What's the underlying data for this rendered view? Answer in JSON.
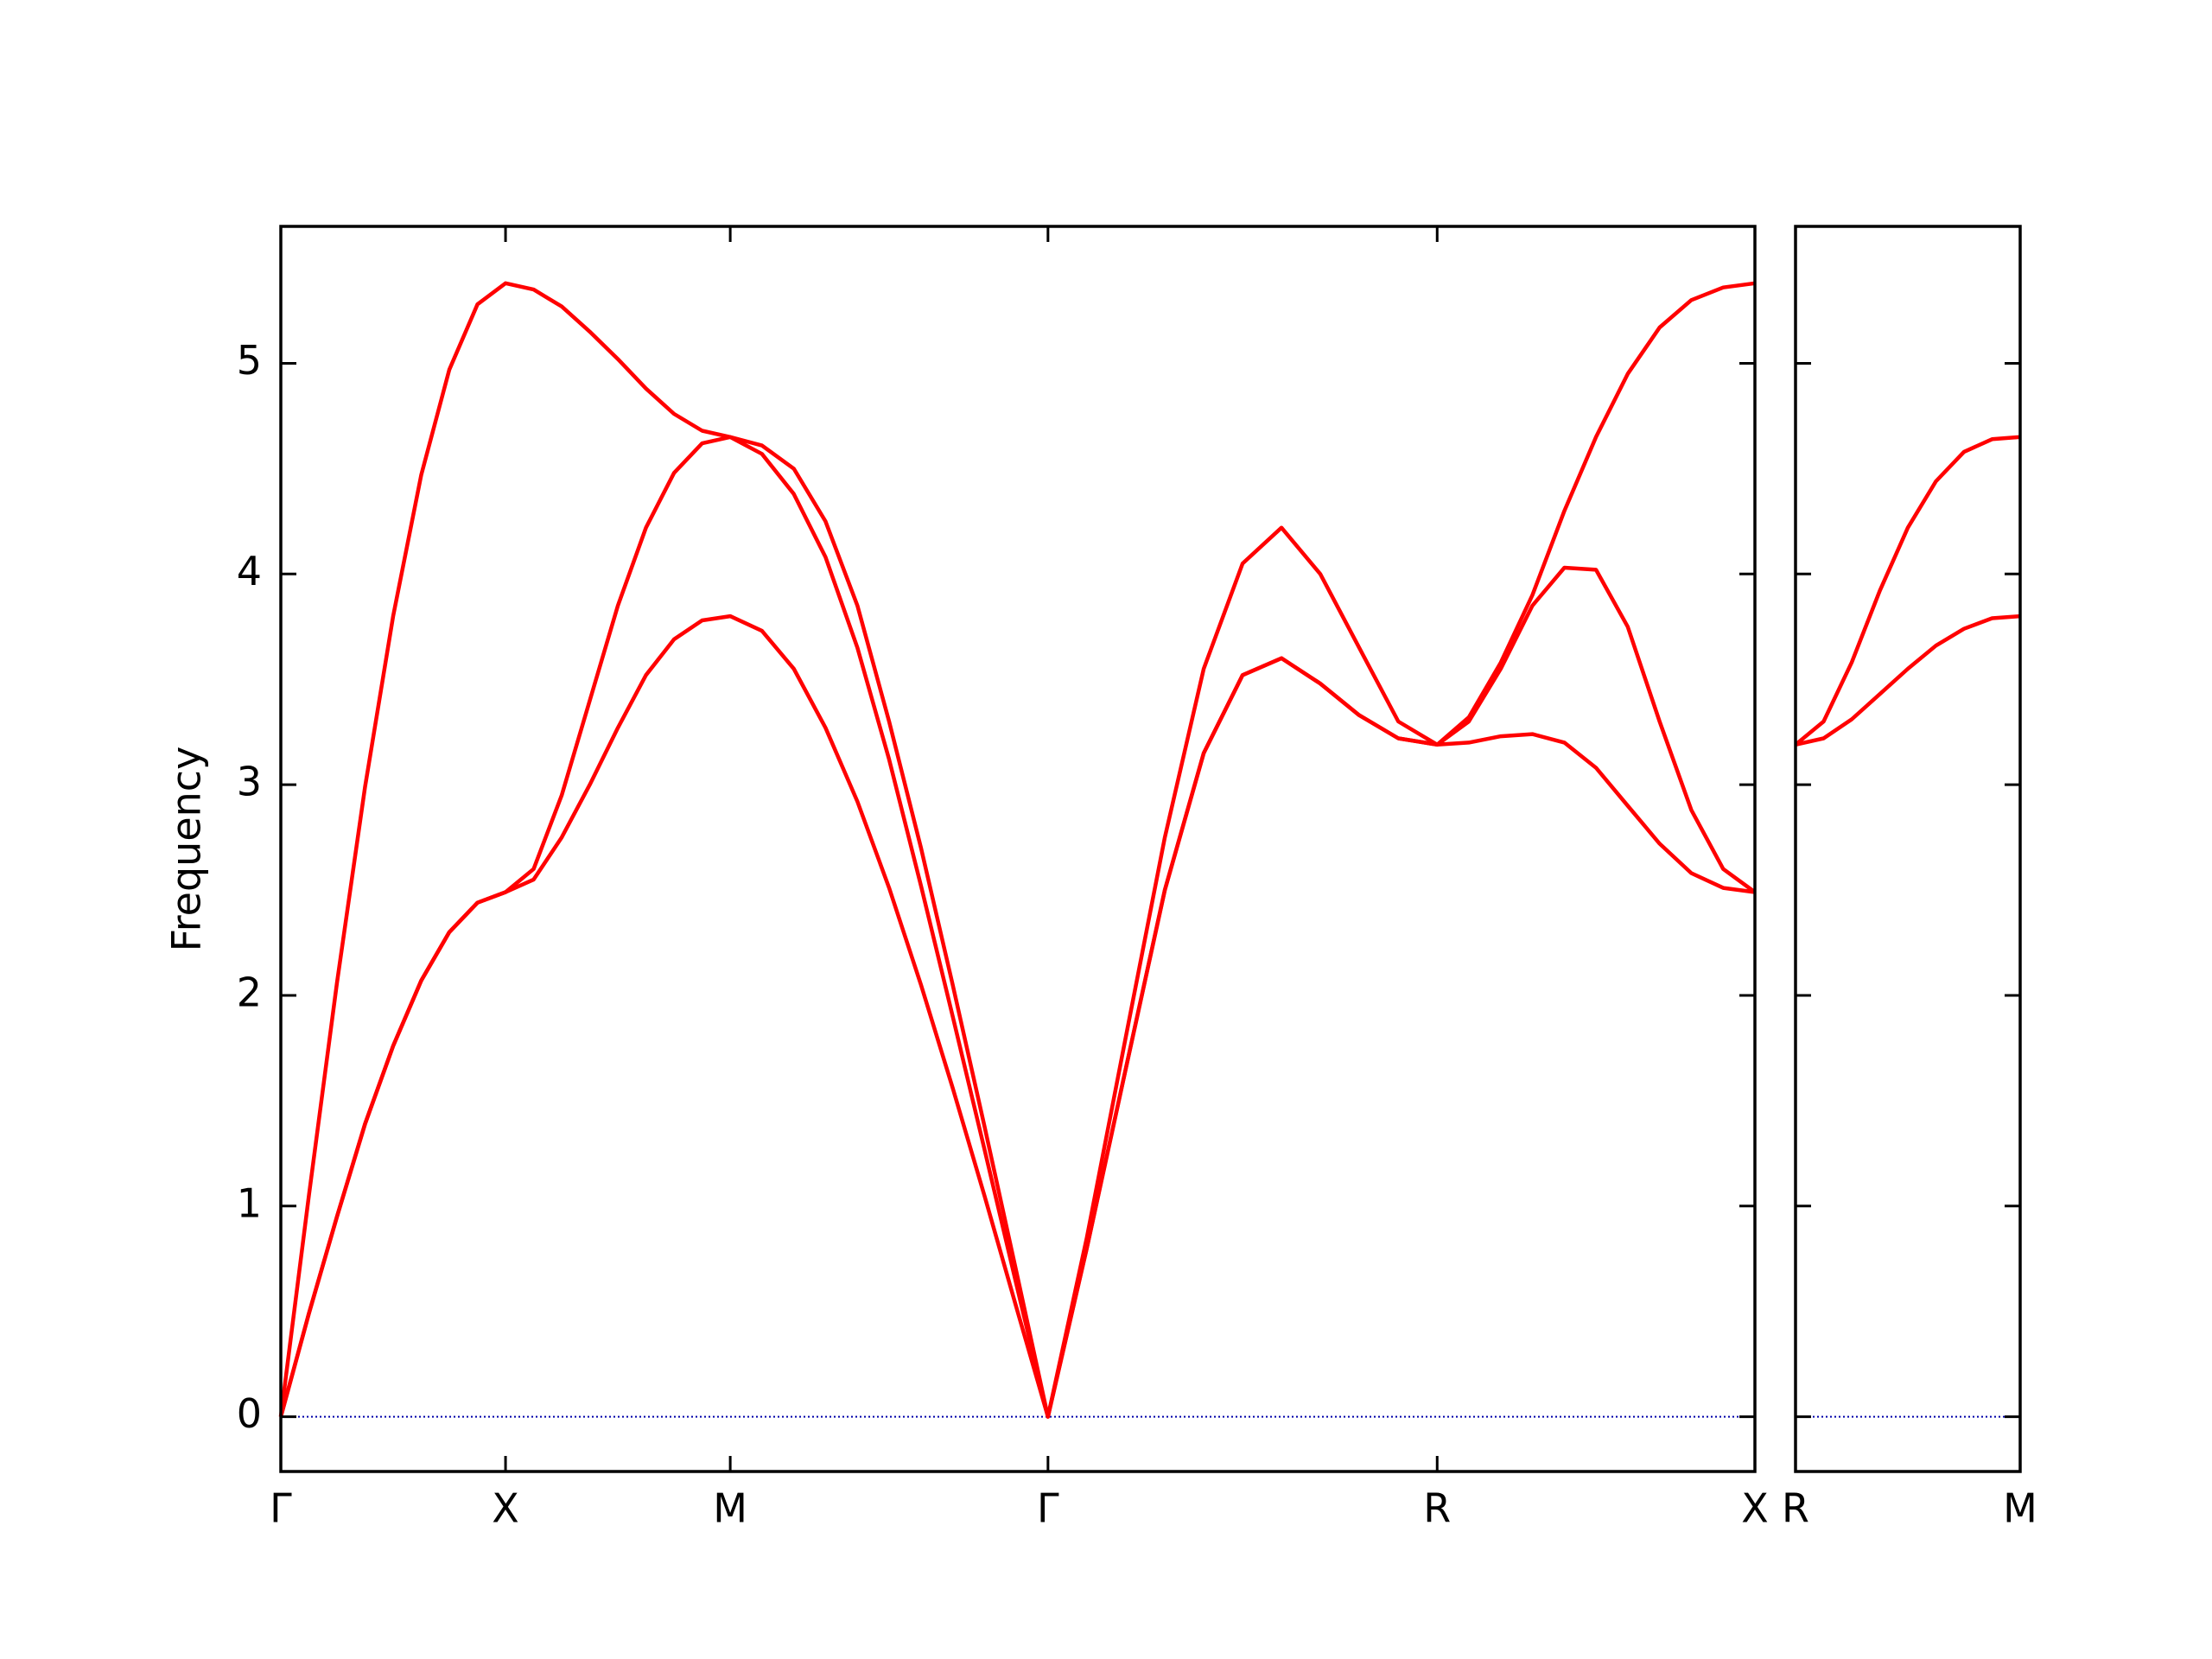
{
  "chart_data": [
    {
      "type": "line",
      "ylabel": "Frequency",
      "x": [
        0,
        0.125,
        0.25,
        0.375,
        0.5,
        0.625,
        0.75,
        0.875,
        1,
        1.125,
        1.25,
        1.375,
        1.5,
        1.625,
        1.75,
        1.875,
        2,
        2.141,
        2.283,
        2.424,
        2.566,
        2.707,
        2.849,
        2.99,
        3.131,
        3.273,
        3.414,
        3.587,
        3.76,
        3.934,
        4.107,
        4.28,
        4.453,
        4.626,
        4.799,
        4.973,
        5.146,
        5.287,
        5.429,
        5.57,
        5.712,
        5.853,
        5.994,
        6.136,
        6.277,
        6.419,
        6.56
      ],
      "series": [
        {
          "color": "#ff0000",
          "values": [
            0,
            0.49,
            0.95,
            1.39,
            1.76,
            2.07,
            2.3,
            2.44,
            2.49,
            2.55,
            2.75,
            3,
            3.27,
            3.52,
            3.69,
            3.78,
            3.8,
            3.73,
            3.55,
            3.27,
            2.92,
            2.51,
            2.05,
            1.56,
            1.05,
            0.52,
            0,
            0.8,
            1.65,
            2.5,
            3.15,
            3.52,
            3.6,
            3.48,
            3.33,
            3.22,
            3.19,
            3.2,
            3.23,
            3.24,
            3.2,
            3.08,
            2.9,
            2.72,
            2.58,
            2.51,
            2.49
          ]
        },
        {
          "color": "#ff0000",
          "values": [
            0,
            0.49,
            0.95,
            1.39,
            1.76,
            2.07,
            2.3,
            2.44,
            2.49,
            2.6,
            2.95,
            3.4,
            3.85,
            4.22,
            4.48,
            4.62,
            4.65,
            4.57,
            4.38,
            4.08,
            3.65,
            3.12,
            2.52,
            1.9,
            1.27,
            0.63,
            0,
            0.8,
            1.65,
            2.5,
            3.15,
            3.52,
            3.6,
            3.48,
            3.33,
            3.22,
            3.19,
            3.3,
            3.55,
            3.85,
            4.03,
            4.02,
            3.75,
            3.3,
            2.88,
            2.6,
            2.49
          ]
        },
        {
          "color": "#ff0000",
          "values": [
            0,
            1.05,
            2.06,
            2.99,
            3.8,
            4.47,
            4.97,
            5.28,
            5.38,
            5.35,
            5.27,
            5.15,
            5.02,
            4.88,
            4.76,
            4.68,
            4.65,
            4.61,
            4.5,
            4.25,
            3.85,
            3.3,
            2.7,
            2.05,
            1.38,
            0.69,
            0,
            0.85,
            1.8,
            2.75,
            3.55,
            4.05,
            4.22,
            4,
            3.65,
            3.3,
            3.19,
            3.32,
            3.58,
            3.9,
            4.3,
            4.65,
            4.95,
            5.17,
            5.3,
            5.36,
            5.38
          ]
        }
      ],
      "xlim": [
        0,
        6.56
      ],
      "xticks": [
        {
          "value": 0,
          "label": "Γ"
        },
        {
          "value": 1,
          "label": "X"
        },
        {
          "value": 2,
          "label": "M"
        },
        {
          "value": 3.414,
          "label": "Γ"
        },
        {
          "value": 5.146,
          "label": "R"
        },
        {
          "value": 6.56,
          "label": "X"
        }
      ],
      "ylim": [
        -0.26,
        5.65
      ],
      "yticks": [
        0,
        1,
        2,
        3,
        4,
        5
      ],
      "show_ytick_labels": true,
      "hline": 0,
      "hline_color": "#0000aa"
    },
    {
      "type": "line",
      "x": [
        0,
        0.125,
        0.25,
        0.375,
        0.5,
        0.625,
        0.75,
        0.875,
        1
      ],
      "series": [
        {
          "color": "#ff0000",
          "values": [
            3.19,
            3.22,
            3.31,
            3.43,
            3.55,
            3.66,
            3.74,
            3.79,
            3.8
          ]
        },
        {
          "color": "#ff0000",
          "values": [
            3.19,
            3.3,
            3.58,
            3.92,
            4.22,
            4.44,
            4.58,
            4.64,
            4.65
          ]
        }
      ],
      "xlim": [
        0,
        1
      ],
      "xticks": [
        {
          "value": 0,
          "label": "R"
        },
        {
          "value": 1,
          "label": "M"
        }
      ],
      "ylim": [
        -0.26,
        5.65
      ],
      "yticks": [
        0,
        1,
        2,
        3,
        4,
        5
      ],
      "show_ytick_labels": false,
      "hline": 0,
      "hline_color": "#0000aa"
    }
  ]
}
